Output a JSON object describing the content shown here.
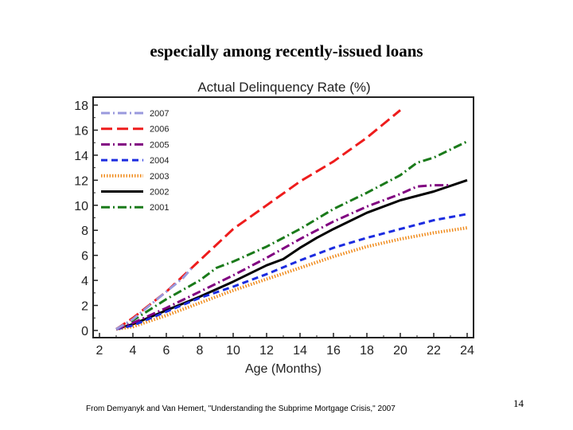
{
  "slide": {
    "title": "especially among recently-issued loans",
    "footnote": "From Demyanyk and Van Hemert, \"Understanding the Subprime Mortgage Crisis,\" 2007",
    "page_number": "14"
  },
  "chart_data": {
    "type": "line",
    "title": "Actual Delinquency Rate (%)",
    "xlabel": "Age (Months)",
    "ylabel": "",
    "xlim": [
      2,
      24
    ],
    "ylim": [
      0,
      18
    ],
    "xticks": [
      2,
      4,
      6,
      8,
      10,
      12,
      14,
      16,
      18,
      20,
      22,
      24
    ],
    "yticks": [
      0,
      2,
      4,
      6,
      8,
      10,
      12,
      14,
      16,
      18
    ],
    "grid": false,
    "legend_position": "top-left",
    "series": [
      {
        "name": "2007",
        "color": "#9999dd",
        "dash": "dash-dot",
        "points": [
          [
            3,
            0.1
          ],
          [
            4,
            0.9
          ],
          [
            5,
            2.0
          ],
          [
            6,
            3.1
          ],
          [
            7,
            4.2
          ],
          [
            7.6,
            5.1
          ]
        ]
      },
      {
        "name": "2006",
        "color": "#ee1c1c",
        "dash": "long-dash",
        "points": [
          [
            3,
            0.1
          ],
          [
            4,
            1.0
          ],
          [
            6,
            3.1
          ],
          [
            8,
            5.6
          ],
          [
            10,
            8.1
          ],
          [
            12,
            10.0
          ],
          [
            14,
            11.9
          ],
          [
            16,
            13.5
          ],
          [
            18,
            15.4
          ],
          [
            20,
            17.6
          ]
        ]
      },
      {
        "name": "2005",
        "color": "#800080",
        "dash": "dash-dot",
        "points": [
          [
            3,
            0.1
          ],
          [
            4,
            0.6
          ],
          [
            6,
            1.8
          ],
          [
            8,
            3.1
          ],
          [
            10,
            4.4
          ],
          [
            12,
            5.8
          ],
          [
            14,
            7.3
          ],
          [
            16,
            8.7
          ],
          [
            18,
            9.9
          ],
          [
            20,
            10.9
          ],
          [
            21,
            11.5
          ],
          [
            22,
            11.6
          ],
          [
            23,
            11.6
          ]
        ]
      },
      {
        "name": "2004",
        "color": "#1c2ce0",
        "dash": "dash",
        "points": [
          [
            3,
            0.1
          ],
          [
            4,
            0.4
          ],
          [
            6,
            1.5
          ],
          [
            8,
            2.6
          ],
          [
            10,
            3.5
          ],
          [
            12,
            4.5
          ],
          [
            14,
            5.6
          ],
          [
            16,
            6.6
          ],
          [
            18,
            7.4
          ],
          [
            20,
            8.1
          ],
          [
            22,
            8.8
          ],
          [
            24,
            9.3
          ]
        ]
      },
      {
        "name": "2003",
        "color": "#f08c1e",
        "dash": "dotted",
        "points": [
          [
            3,
            0.1
          ],
          [
            4,
            0.3
          ],
          [
            6,
            1.2
          ],
          [
            8,
            2.2
          ],
          [
            10,
            3.2
          ],
          [
            12,
            4.1
          ],
          [
            14,
            5.0
          ],
          [
            16,
            5.9
          ],
          [
            18,
            6.7
          ],
          [
            20,
            7.3
          ],
          [
            22,
            7.8
          ],
          [
            24,
            8.2
          ]
        ]
      },
      {
        "name": "2002",
        "color": "#000000",
        "dash": "solid",
        "points": [
          [
            3,
            0.1
          ],
          [
            4,
            0.5
          ],
          [
            6,
            1.6
          ],
          [
            8,
            2.7
          ],
          [
            10,
            3.9
          ],
          [
            12,
            5.2
          ],
          [
            13,
            5.7
          ],
          [
            14,
            6.6
          ],
          [
            15,
            7.4
          ],
          [
            16,
            8.1
          ],
          [
            18,
            9.4
          ],
          [
            20,
            10.4
          ],
          [
            22,
            11.1
          ],
          [
            24,
            12.0
          ]
        ]
      },
      {
        "name": "2001",
        "color": "#1a7a1a",
        "dash": "dash-dot",
        "points": [
          [
            3,
            0.1
          ],
          [
            4,
            0.8
          ],
          [
            6,
            2.5
          ],
          [
            8,
            4.0
          ],
          [
            9,
            5.0
          ],
          [
            10,
            5.5
          ],
          [
            12,
            6.7
          ],
          [
            14,
            8.1
          ],
          [
            16,
            9.7
          ],
          [
            18,
            11.0
          ],
          [
            20,
            12.4
          ],
          [
            21,
            13.4
          ],
          [
            22,
            13.8
          ],
          [
            24,
            15.1
          ]
        ]
      }
    ]
  }
}
